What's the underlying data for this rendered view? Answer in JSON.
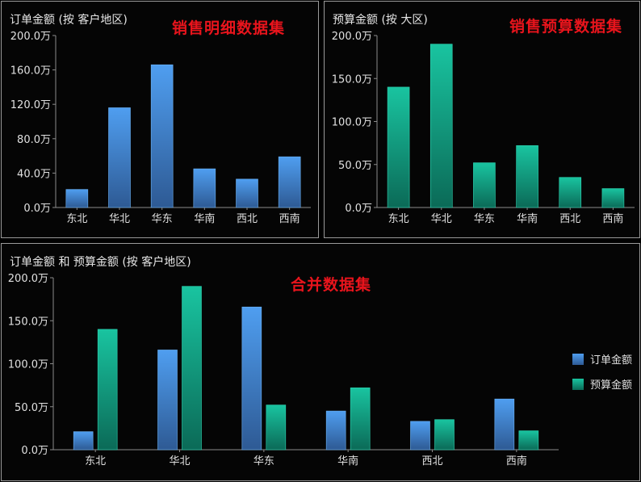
{
  "panels": {
    "p1": {
      "title": "订单金额 (按 客户地区)",
      "overlay": "销售明细数据集"
    },
    "p2": {
      "title": "预算金额 (按 大区)",
      "overlay": "销售预算数据集"
    },
    "p3": {
      "title": "订单金额 和 预算金额 (按 客户地区)",
      "overlay": "合并数据集"
    }
  },
  "colors": {
    "order_top": "#4f9ef0",
    "order_bottom": "#2e5a94",
    "budget_top": "#19c4a0",
    "budget_bottom": "#0b6a57",
    "axis": "#8a8a8a",
    "tick_text": "#e0e0e0"
  },
  "chart_data": [
    {
      "type": "bar",
      "title": "订单金额 (按 客户地区)",
      "categories": [
        "东北",
        "华北",
        "华东",
        "华南",
        "西北",
        "西南"
      ],
      "series": [
        {
          "name": "订单金额",
          "values": [
            21.0,
            116.0,
            166.0,
            45.0,
            33.0,
            59.0
          ]
        }
      ],
      "ylim": [
        0,
        200
      ],
      "yticks": [
        "0.0万",
        "40.0万",
        "80.0万",
        "120.0万",
        "160.0万",
        "200.0万"
      ],
      "legend": "none"
    },
    {
      "type": "bar",
      "title": "预算金额 (按 大区)",
      "categories": [
        "东北",
        "华北",
        "华东",
        "华南",
        "西北",
        "西南"
      ],
      "series": [
        {
          "name": "预算金额",
          "values": [
            140.0,
            190.0,
            52.0,
            72.0,
            35.0,
            22.0
          ]
        }
      ],
      "ylim": [
        0,
        200
      ],
      "yticks": [
        "0.0万",
        "50.0万",
        "100.0万",
        "150.0万",
        "200.0万"
      ],
      "legend": "none"
    },
    {
      "type": "bar",
      "title": "订单金额 和 预算金额 (按 客户地区)",
      "categories": [
        "东北",
        "华北",
        "华东",
        "华南",
        "西北",
        "西南"
      ],
      "series": [
        {
          "name": "订单金额",
          "values": [
            21.0,
            116.0,
            166.0,
            45.0,
            33.0,
            59.0
          ]
        },
        {
          "name": "预算金额",
          "values": [
            140.0,
            190.0,
            52.0,
            72.0,
            35.0,
            22.0
          ]
        }
      ],
      "ylim": [
        0,
        200
      ],
      "yticks": [
        "0.0万",
        "50.0万",
        "100.0万",
        "150.0万",
        "200.0万"
      ],
      "legend": "right"
    }
  ]
}
